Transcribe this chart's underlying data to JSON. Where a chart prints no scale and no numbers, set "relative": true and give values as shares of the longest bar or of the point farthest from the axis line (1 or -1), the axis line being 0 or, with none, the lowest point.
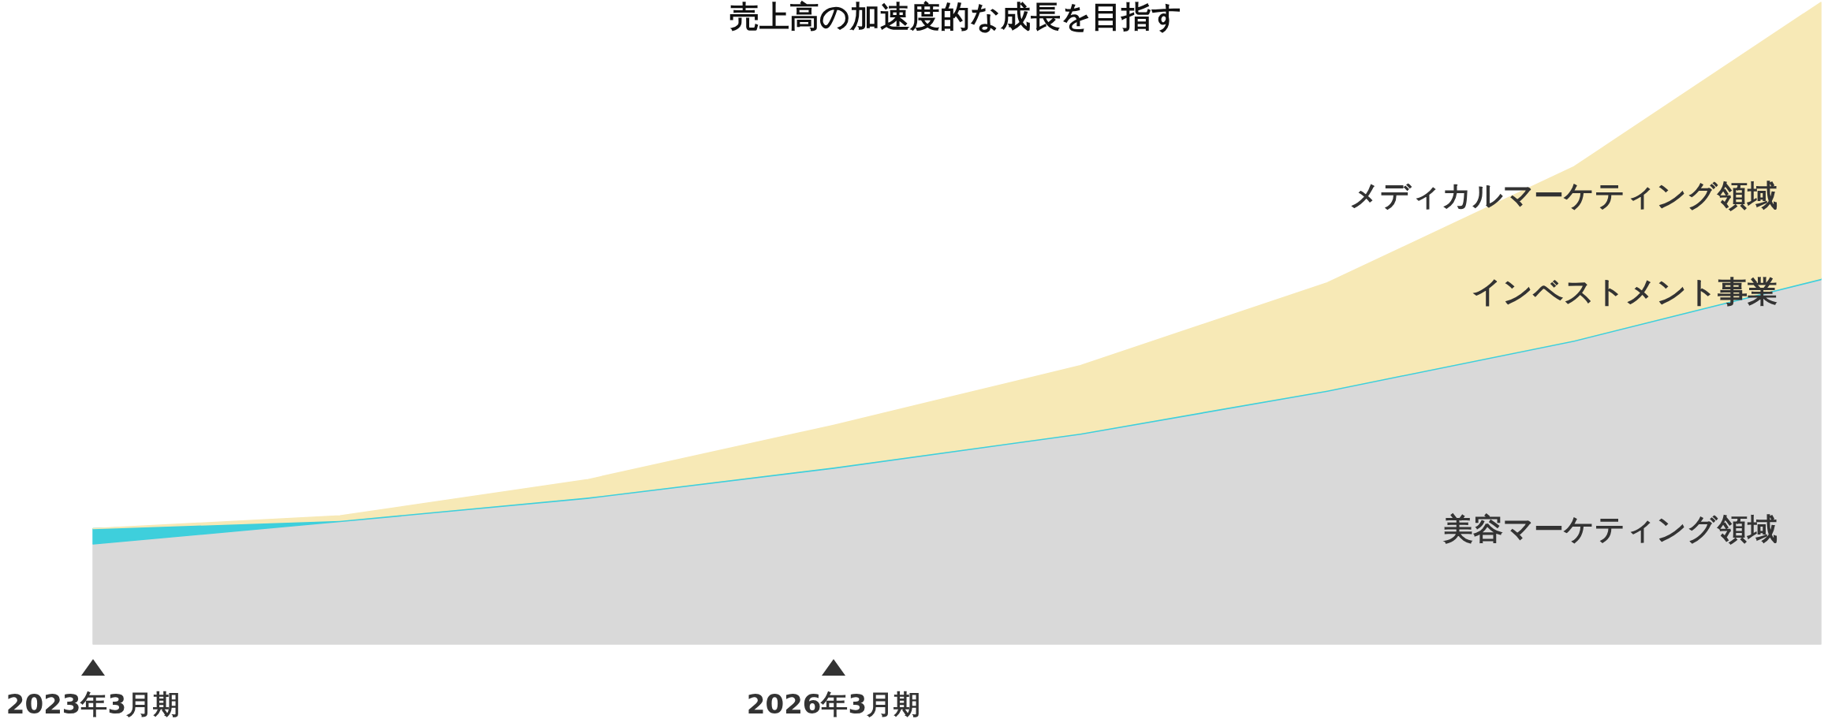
{
  "chart_data": {
    "type": "area",
    "title": "売上高の加速度的な成長を目指す",
    "relative": true,
    "stacked": true,
    "categories": [
      "2023年3月期",
      null,
      null,
      "2026年3月期",
      null,
      null,
      null,
      null
    ],
    "series": [
      {
        "name": "美容マーケティング領域",
        "color": "#d9d9d9",
        "values": [
          0.156,
          0.191,
          0.227,
          0.274,
          0.327,
          0.394,
          0.472,
          0.568
        ]
      },
      {
        "name": "インベストメント事業",
        "color": "#3ecfdc",
        "values": [
          0.024,
          0.002,
          0.002,
          0.002,
          0.002,
          0.002,
          0.002,
          0.002
        ]
      },
      {
        "name": "メディカルマーケティング領域",
        "color": "#f7e9b6",
        "values": [
          0,
          0.007,
          0.027,
          0.065,
          0.105,
          0.167,
          0.27,
          0.43
        ]
      }
    ]
  }
}
